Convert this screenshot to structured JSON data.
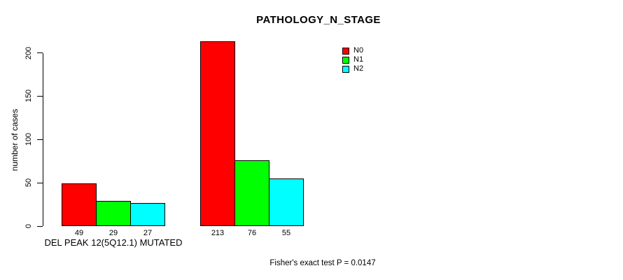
{
  "chart_data": {
    "type": "bar",
    "title": "PATHOLOGY_N_STAGE",
    "ylabel": "number of cases",
    "xlabel": "",
    "categories": [
      "DEL PEAK 12(5Q12.1) MUTATED",
      ""
    ],
    "series": [
      {
        "name": "N0",
        "color": "#FF0000",
        "values": [
          49,
          213
        ]
      },
      {
        "name": "N1",
        "color": "#00FF00",
        "values": [
          29,
          76
        ]
      },
      {
        "name": "N2",
        "color": "#00FFFF",
        "values": [
          27,
          55
        ]
      }
    ],
    "y_ticks": [
      0,
      50,
      100,
      150,
      200
    ],
    "ylim": [
      0,
      215
    ],
    "grid": false,
    "legend_position": "top-right",
    "annotation": "Fisher's exact test P = 0.0147"
  }
}
